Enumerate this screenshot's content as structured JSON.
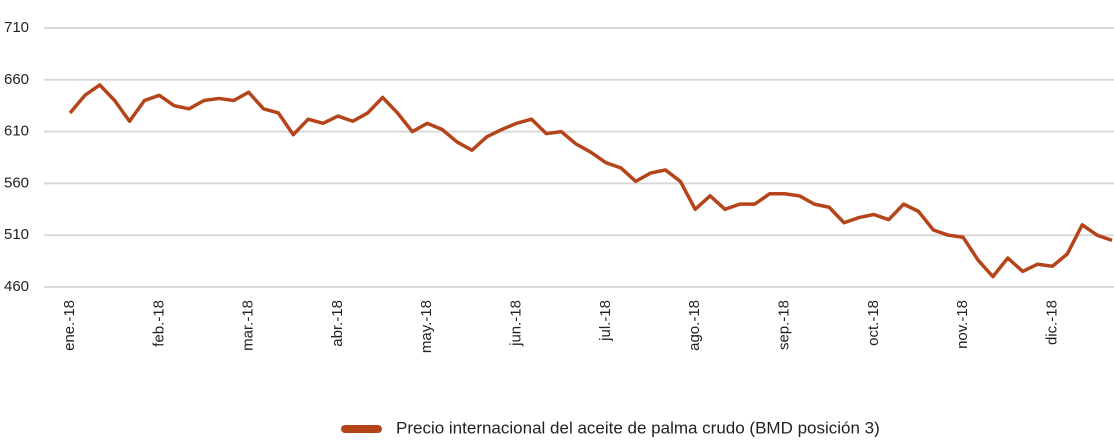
{
  "chart_data": {
    "type": "line",
    "categories": [
      "ene.-18",
      null,
      null,
      null,
      null,
      null,
      "feb.-18",
      null,
      null,
      null,
      null,
      null,
      "mar.-18",
      null,
      null,
      null,
      null,
      null,
      "abr.-18",
      null,
      null,
      null,
      null,
      null,
      "may.-18",
      null,
      null,
      null,
      null,
      null,
      "jun.-18",
      null,
      null,
      null,
      null,
      null,
      "jul.-18",
      null,
      null,
      null,
      null,
      null,
      "ago.-18",
      null,
      null,
      null,
      null,
      null,
      "sep.-18",
      null,
      null,
      null,
      null,
      null,
      "oct.-18",
      null,
      null,
      null,
      null,
      null,
      "nov.-18",
      null,
      null,
      null,
      null,
      null,
      "dic.-18",
      null,
      null,
      null,
      null
    ],
    "series": [
      {
        "name": "Precio internacional del aceite de palma crudo (BMD posición 3)",
        "color": "#b5441a",
        "values": [
          628,
          645,
          655,
          640,
          620,
          640,
          645,
          635,
          632,
          640,
          642,
          640,
          648,
          632,
          628,
          607,
          622,
          618,
          625,
          620,
          628,
          643,
          628,
          610,
          618,
          612,
          600,
          592,
          605,
          612,
          618,
          622,
          608,
          610,
          598,
          590,
          580,
          575,
          562,
          570,
          573,
          562,
          535,
          548,
          535,
          540,
          540,
          550,
          550,
          548,
          540,
          537,
          522,
          527,
          530,
          525,
          540,
          533,
          515,
          510,
          508,
          486,
          470,
          488,
          475,
          482,
          480,
          492,
          520,
          510,
          505
        ]
      }
    ],
    "ylim": [
      460,
      710
    ],
    "yticks": [
      460,
      510,
      560,
      610,
      660,
      710
    ],
    "grid": true,
    "legend": "bottom"
  }
}
